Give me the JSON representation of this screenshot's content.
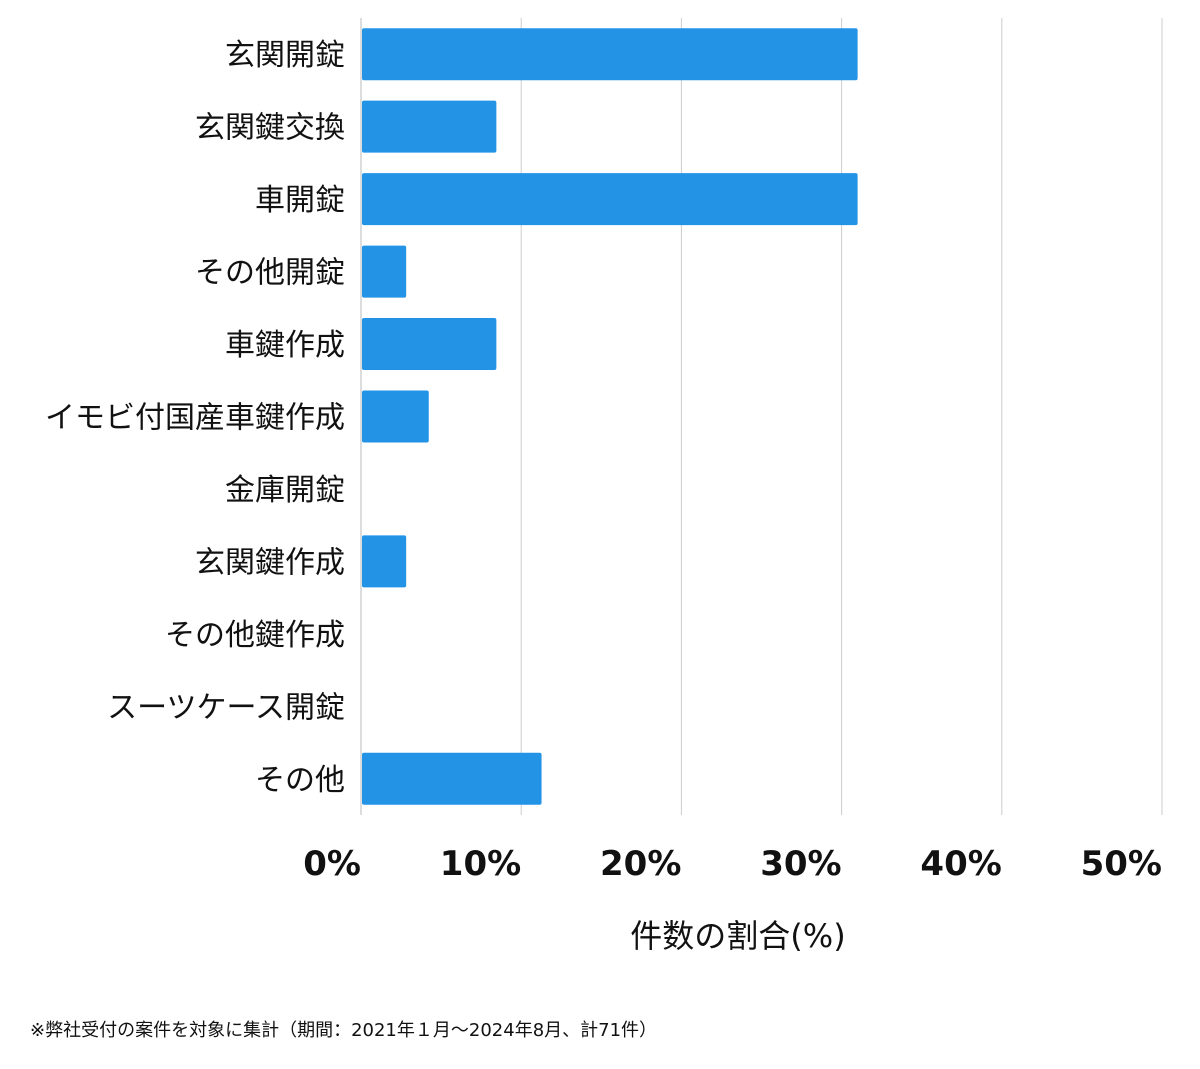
{
  "chart_data": {
    "type": "bar",
    "orientation": "horizontal",
    "categories": [
      "玄関開錠",
      "玄関鍵交換",
      "車開錠",
      "その他開錠",
      "車鍵作成",
      "イモビ付国産車鍵作成",
      "金庫開錠",
      "玄関鍵作成",
      "その他鍵作成",
      "スーツケース開錠",
      "その他"
    ],
    "values": [
      31.0,
      8.45,
      31.0,
      2.82,
      8.45,
      4.23,
      0,
      2.82,
      0,
      0,
      11.27
    ],
    "xlabel": "件数の割合(%)",
    "ylabel": "",
    "xlim": [
      0,
      50
    ],
    "xticks": [
      "0%",
      "10%",
      "20%",
      "30%",
      "40%",
      "50%"
    ],
    "grid": true,
    "legend": "none",
    "bar_color": "#2393e6",
    "grid_color": "#cccccc"
  },
  "footnote": "※弊社受付の案件を対象に集計（期間：2021年１月〜2024年8月、計71件）"
}
